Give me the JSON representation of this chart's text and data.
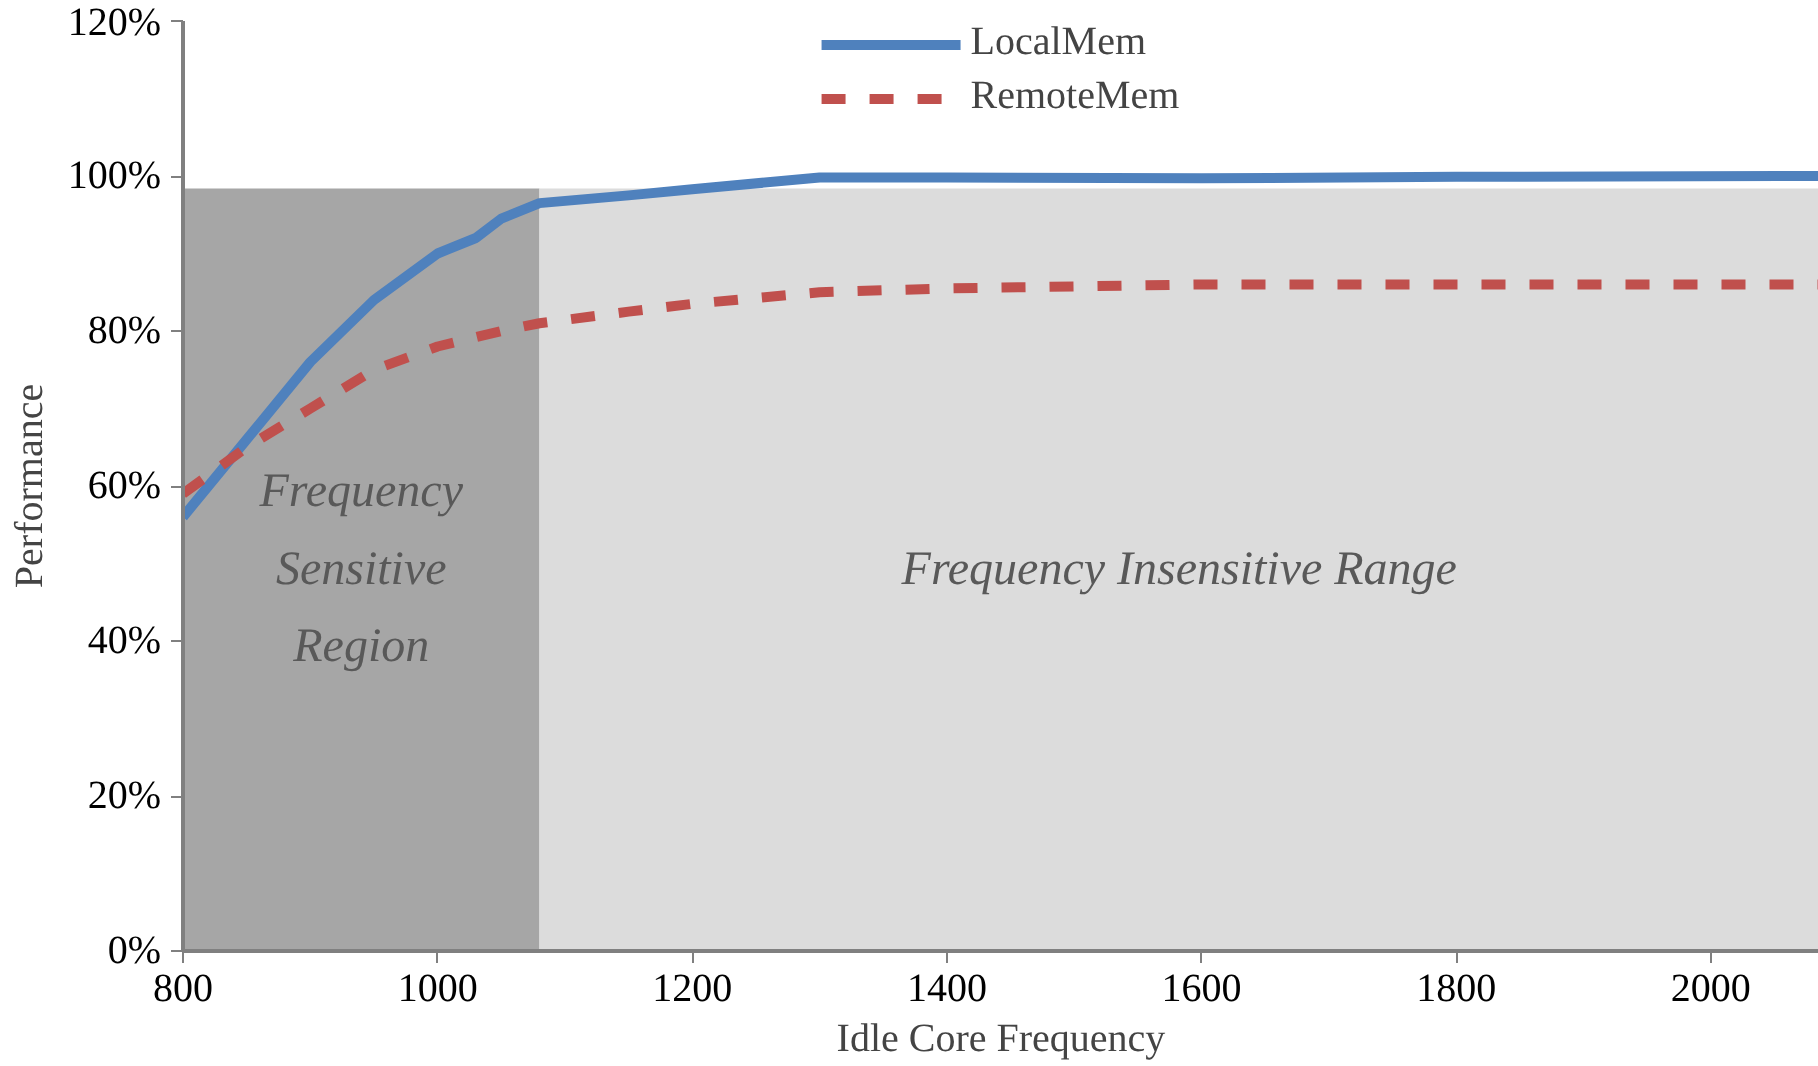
{
  "chart_data": {
    "type": "line",
    "xlabel": "Idle Core Frequency",
    "ylabel": "Performance",
    "xlim": [
      800,
      2085
    ],
    "ylim": [
      0,
      120
    ],
    "xticks": [
      800,
      1000,
      1200,
      1400,
      1600,
      1800,
      2000
    ],
    "yticks": [
      {
        "value": 0,
        "label": "0%"
      },
      {
        "value": 20,
        "label": "20%"
      },
      {
        "value": 40,
        "label": "40%"
      },
      {
        "value": 60,
        "label": "60%"
      },
      {
        "value": 80,
        "label": "80%"
      },
      {
        "value": 100,
        "label": "100%"
      },
      {
        "value": 120,
        "label": "120%"
      }
    ],
    "x": [
      800,
      850,
      900,
      950,
      1000,
      1030,
      1050,
      1080,
      1150,
      1200,
      1300,
      1400,
      1600,
      1800,
      2085
    ],
    "series": [
      {
        "name": "LocalMem",
        "color": "#4f81bd",
        "line_style": "solid",
        "values": [
          56,
          66,
          76,
          84,
          90,
          92,
          94.5,
          96.5,
          97.5,
          98.3,
          99.8,
          99.8,
          99.7,
          99.9,
          100
        ]
      },
      {
        "name": "RemoteMem",
        "color": "#c0504d",
        "line_style": "dashed",
        "values": [
          59,
          65,
          70,
          75,
          78,
          79.2,
          80,
          81,
          82.5,
          83.5,
          85,
          85.5,
          86,
          86,
          86
        ]
      }
    ],
    "bands": [
      {
        "axis": "x",
        "from": 800,
        "to": 1080,
        "label": "Frequency\nSensitive\nRegion",
        "color": "#a6a6a6"
      },
      {
        "axis": "x",
        "from": 1080,
        "to": 2085,
        "label": "Frequency Insensitive Range",
        "color": "#dcdcdc"
      }
    ],
    "legend": "top",
    "grid": false,
    "marker": "none"
  }
}
